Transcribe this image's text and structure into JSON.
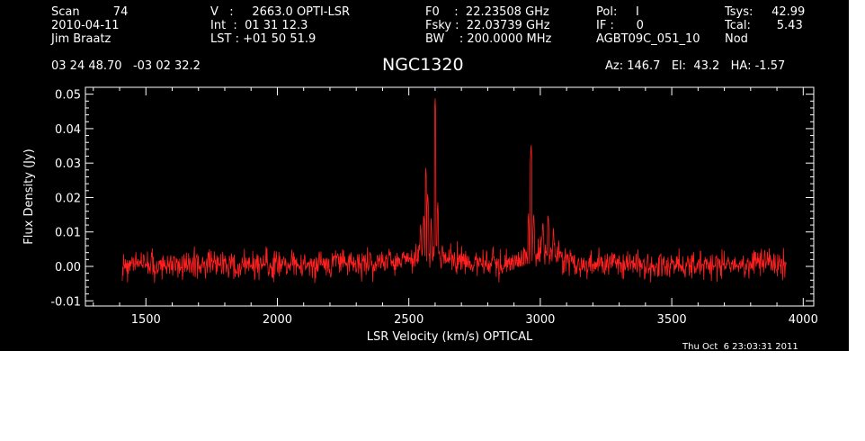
{
  "header": {
    "col1": [
      "Scan         74",
      "2010-04-11",
      "Jim Braatz"
    ],
    "col2": [
      "V   :     2663.0 OPTI-LSR",
      "Int  :  01 31 12.3",
      "LST : +01 50 51.9"
    ],
    "col3": [
      "F0    :  22.23508 GHz",
      "Fsky :  22.03739 GHz",
      "BW    : 200.0000 MHz"
    ],
    "col4": [
      "Pol:     I",
      "IF :      0",
      "AGBT09C_051_10"
    ],
    "col5": [
      "Tsys:     42.99",
      "Tcal:       5.43",
      "Nod"
    ],
    "coords": "03 24 48.70   -03 02 32.2",
    "source": "NGC1320",
    "azel": "Az: 146.7   El:  43.2   HA: -1.57",
    "timestamp": "Thu Oct  6 23:03:31 2011"
  },
  "chart_data": {
    "type": "line",
    "xlabel": "LSR Velocity (km/s) OPTICAL",
    "ylabel": "Flux Density (Jy)",
    "xlim": [
      1270,
      4040
    ],
    "ylim": [
      -0.0115,
      0.052
    ],
    "x_ticks": [
      1500,
      2000,
      2500,
      3000,
      3500,
      4000
    ],
    "y_ticks": [
      -0.01,
      0.0,
      0.01,
      0.02,
      0.03,
      0.04,
      0.05
    ],
    "y_tick_labels": [
      "-0.01",
      "0.00",
      "0.01",
      "0.02",
      "0.03",
      "0.04",
      "0.05"
    ],
    "grid": false,
    "series_color": "#ff2020",
    "series": [
      {
        "x_start": 1410,
        "x_end": 3935,
        "noise_rms": 0.0025,
        "peaks": [
          {
            "x": 2545,
            "y": 0.013
          },
          {
            "x": 2557,
            "y": 0.016
          },
          {
            "x": 2565,
            "y": 0.029
          },
          {
            "x": 2572,
            "y": 0.022
          },
          {
            "x": 2585,
            "y": 0.014
          },
          {
            "x": 2600,
            "y": 0.049
          },
          {
            "x": 2610,
            "y": 0.019
          },
          {
            "x": 2820,
            "y": 0.007
          },
          {
            "x": 2955,
            "y": 0.016
          },
          {
            "x": 2965,
            "y": 0.036
          },
          {
            "x": 2975,
            "y": 0.016
          },
          {
            "x": 3010,
            "y": 0.014
          },
          {
            "x": 3030,
            "y": 0.016
          },
          {
            "x": 3050,
            "y": 0.012
          }
        ]
      }
    ]
  }
}
